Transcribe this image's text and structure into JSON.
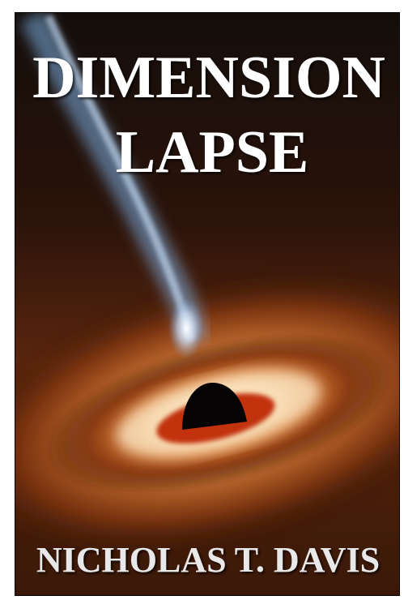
{
  "cover": {
    "title_lines": [
      "DIMENSION",
      "LAPSE"
    ],
    "author": "NICHOLAS T. DAVIS"
  }
}
